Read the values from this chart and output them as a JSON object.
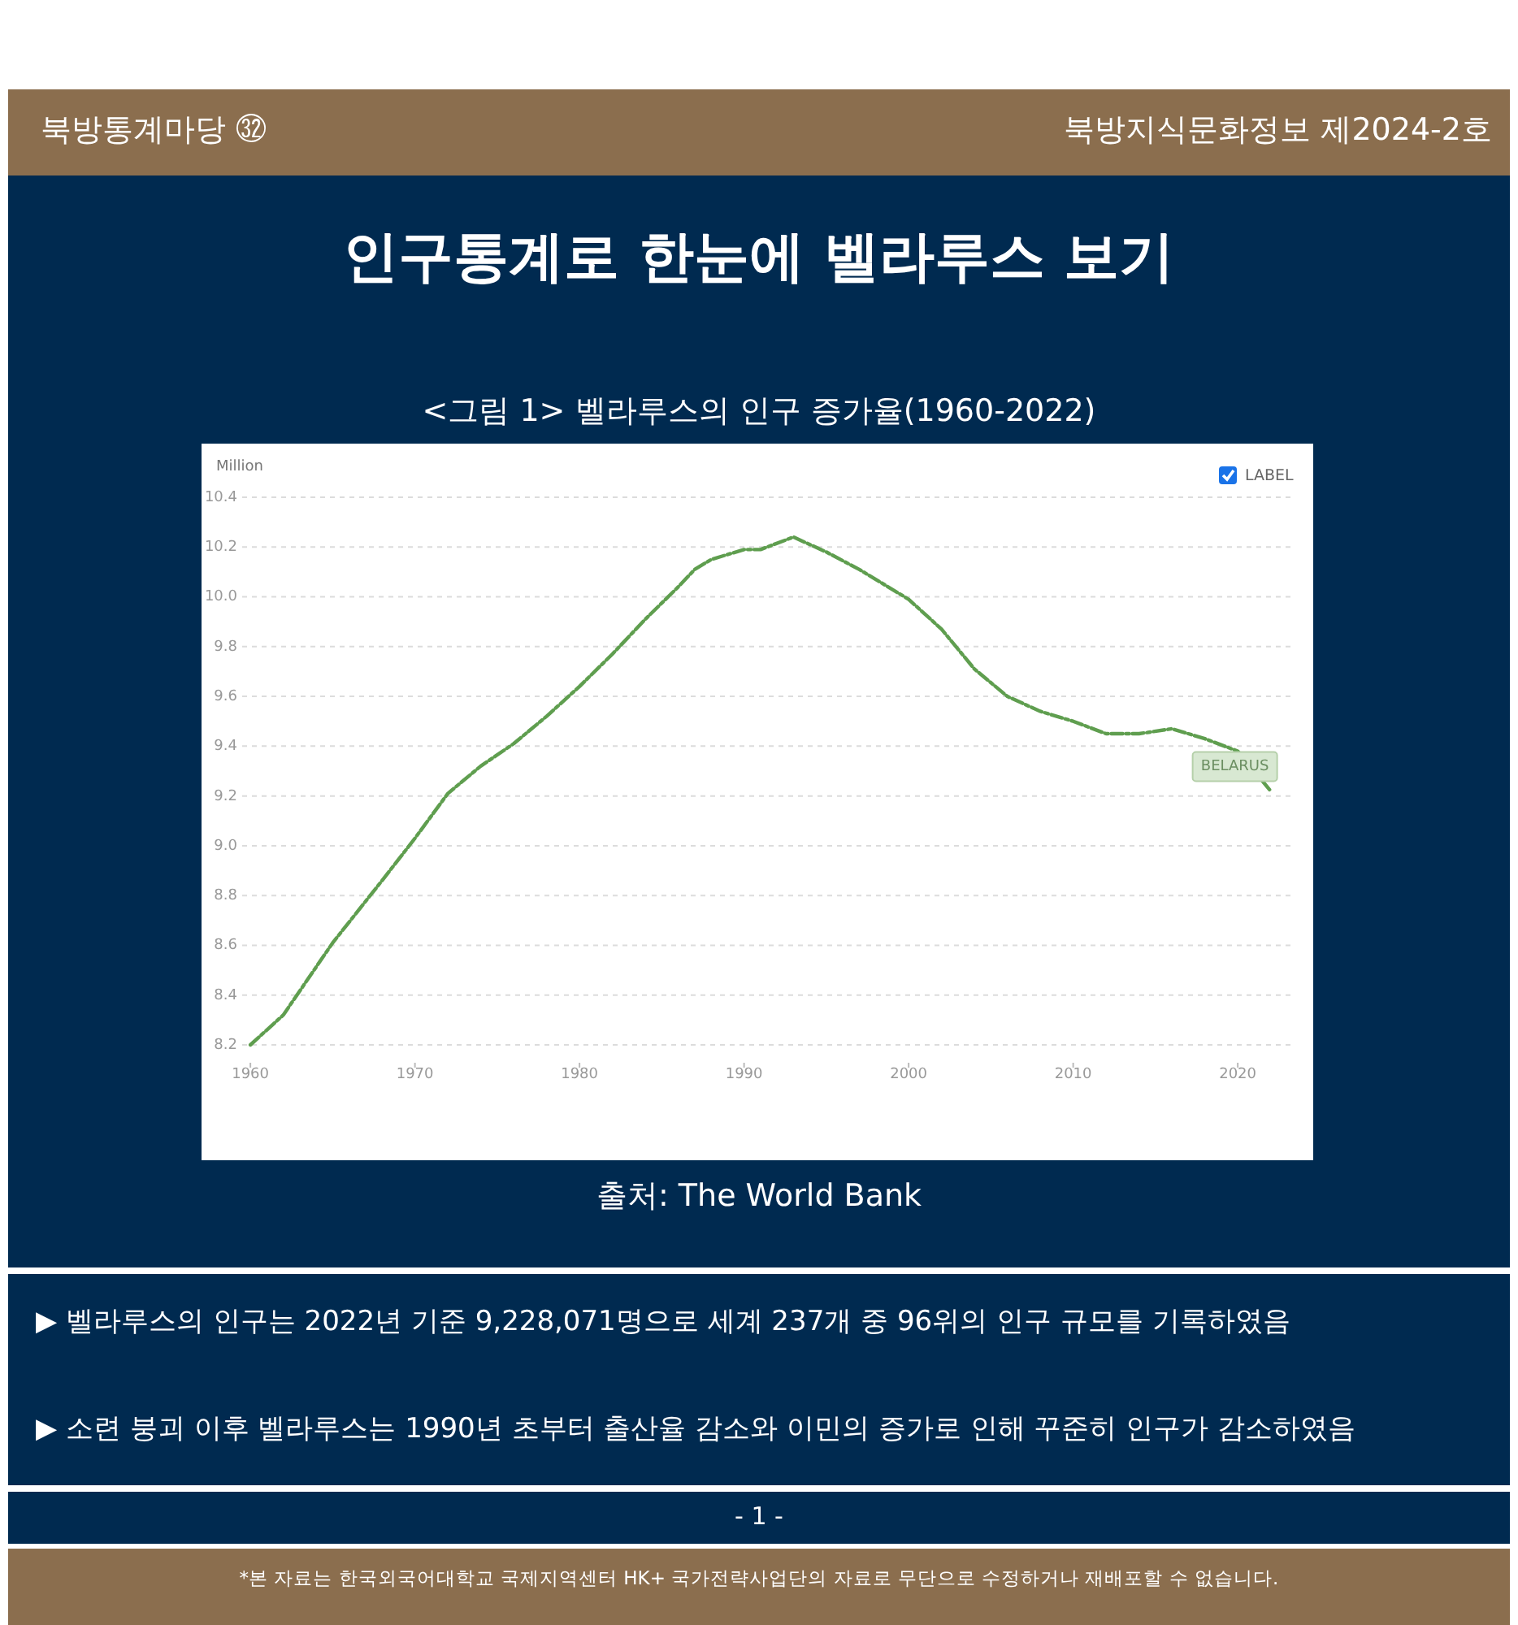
{
  "chart_data": {
    "type": "line",
    "title": "인구통계로 한눈에 벨라루스 보기",
    "subtitle": "<그림 1> 벨라루스의 인구 증가율(1960-2022)",
    "ylabel": "Million",
    "x": [
      1960,
      1962,
      1965,
      1968,
      1970,
      1972,
      1974,
      1976,
      1978,
      1980,
      1982,
      1984,
      1986,
      1987,
      1988,
      1990,
      1991,
      1993,
      1995,
      1997,
      2000,
      2002,
      2004,
      2006,
      2008,
      2010,
      2012,
      2014,
      2016,
      2018,
      2020,
      2022
    ],
    "series": [
      {
        "name": "BELARUS",
        "color": "#5f9e4f",
        "values": [
          8.2,
          8.32,
          8.61,
          8.86,
          9.03,
          9.21,
          9.32,
          9.41,
          9.52,
          9.64,
          9.77,
          9.91,
          10.04,
          10.11,
          10.15,
          10.19,
          10.19,
          10.24,
          10.18,
          10.11,
          9.99,
          9.87,
          9.71,
          9.6,
          9.54,
          9.5,
          9.45,
          9.45,
          9.47,
          9.43,
          9.38,
          9.22
        ]
      }
    ],
    "xlim": [
      1959.5,
      2023.5
    ],
    "ylim": [
      8.2,
      10.4
    ],
    "xticks": [
      1960,
      1970,
      1980,
      1990,
      2000,
      2010,
      2020
    ],
    "yticks": [
      {
        "value": 8.2,
        "label": "8.2"
      },
      {
        "value": 8.4,
        "label": "8.4"
      },
      {
        "value": 8.6,
        "label": "8.6"
      },
      {
        "value": 8.8,
        "label": "8.8"
      },
      {
        "value": 9.0,
        "label": "9.0"
      },
      {
        "value": 9.2,
        "label": "9.2"
      },
      {
        "value": 9.4,
        "label": "9.4"
      },
      {
        "value": 9.6,
        "label": "9.6"
      },
      {
        "value": 9.8,
        "label": "9.8"
      },
      {
        "value": 10.0,
        "label": "10.0"
      },
      {
        "value": 10.2,
        "label": "10.2"
      },
      {
        "value": 10.4,
        "label": "10.4"
      }
    ],
    "grid": "y",
    "line_style": "dashed",
    "marker": "none",
    "annotations": [
      "북방통계마당 ㉜",
      "북방지식문화정보 제2024-2호",
      "출처: The World Bank",
      "▶ 벨라루스의 인구는 2022년 기준 9,228,071명으로 세계 237개 중 96위의 인구 규모를 기록하였음",
      "▶ 소련 붕괴 이후 벨라루스는 1990년 초부터 출산율 감소와 이민의 증가로 인해 꾸준히 인구가 감소하였음",
      "- 1 -",
      "*본 자료는 한국외국어대학교 국제지역센터 HK+ 국가전략사업단의 자료로 무단으로 수정하거나 재배포할 수 없습니다.",
      "LABEL"
    ]
  }
}
